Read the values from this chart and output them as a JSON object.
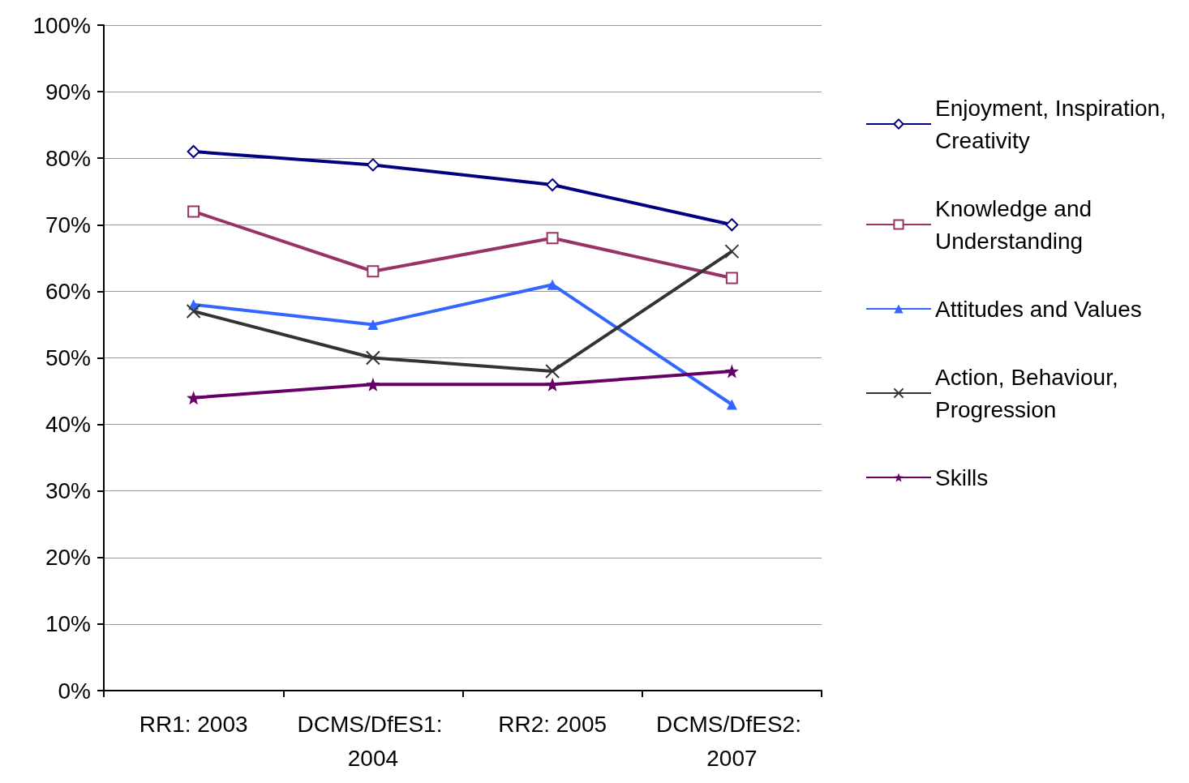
{
  "chart_data": {
    "type": "line",
    "categories": [
      "RR1: 2003",
      "DCMS/DfES1: 2004",
      "RR2: 2005",
      "DCMS/DfES2: 2007"
    ],
    "series": [
      {
        "name": "Enjoyment, Inspiration, Creativity",
        "color": "#000080",
        "marker": "diamond",
        "values": [
          81,
          79,
          76,
          70
        ]
      },
      {
        "name": "Knowledge and Understanding",
        "color": "#993366",
        "marker": "square",
        "values": [
          72,
          63,
          68,
          62
        ]
      },
      {
        "name": "Attitudes and Values",
        "color": "#3366ff",
        "marker": "triangle",
        "values": [
          58,
          55,
          61,
          43
        ]
      },
      {
        "name": "Action, Behaviour, Progression",
        "color": "#333333",
        "marker": "cross",
        "values": [
          57,
          50,
          48,
          66
        ]
      },
      {
        "name": "Skills",
        "color": "#660066",
        "marker": "star",
        "values": [
          44,
          46,
          46,
          48
        ]
      }
    ],
    "ylim": [
      0,
      100
    ],
    "yticks": [
      {
        "value": 0,
        "label": "0%"
      },
      {
        "value": 10,
        "label": "10%"
      },
      {
        "value": 20,
        "label": "20%"
      },
      {
        "value": 30,
        "label": "30%"
      },
      {
        "value": 40,
        "label": "40%"
      },
      {
        "value": 50,
        "label": "50%"
      },
      {
        "value": 60,
        "label": "60%"
      },
      {
        "value": 70,
        "label": "70%"
      },
      {
        "value": 80,
        "label": "80%"
      },
      {
        "value": 90,
        "label": "90%"
      },
      {
        "value": 100,
        "label": "100%"
      }
    ],
    "grid": "y",
    "legend": "right"
  }
}
